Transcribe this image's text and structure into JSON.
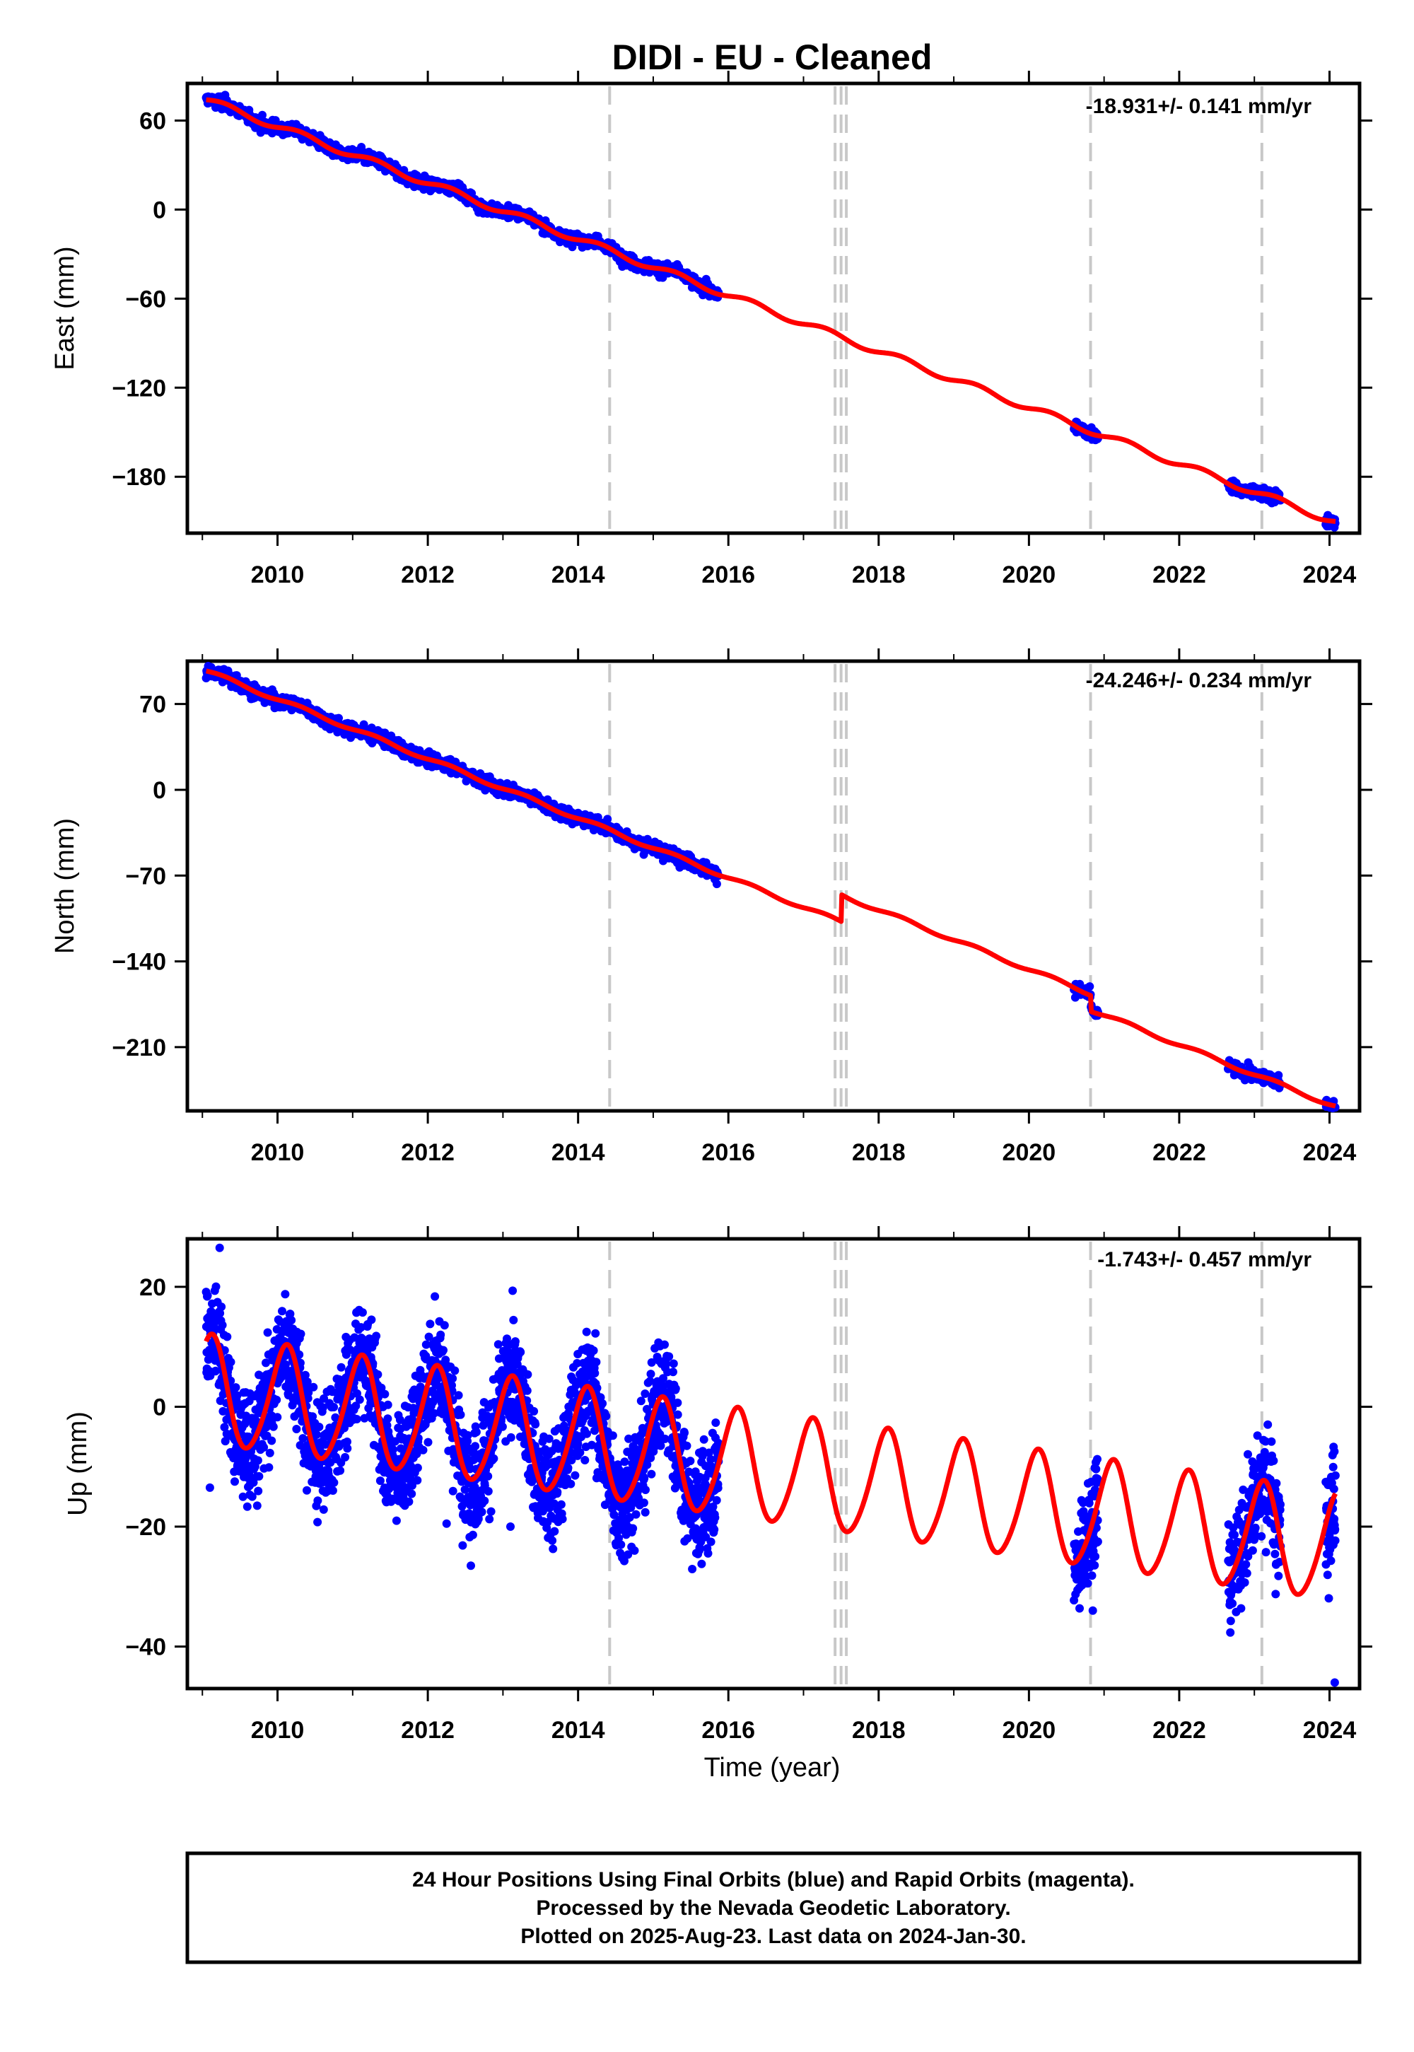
{
  "title": "DIDI  - EU - Cleaned",
  "colors": {
    "data": "#0000ff",
    "model": "#ff0000",
    "break_lines": "#c8c8c8",
    "frame": "#000000"
  },
  "footer": {
    "line1": "24 Hour Positions Using Final Orbits (blue) and Rapid Orbits (magenta).",
    "line2": "Processed by the Nevada Geodetic Laboratory.",
    "line3": "Plotted on 2025-Aug-23. Last data on 2024-Jan-30."
  },
  "chart_data": [
    {
      "type": "scatter",
      "name": "east",
      "ylabel": "East (mm)",
      "rate": "-18.931+/- 0.141 mm/yr",
      "xlim": [
        2008.8,
        2024.4
      ],
      "ylim": [
        -218,
        85
      ],
      "xticks": [
        2010,
        2012,
        2014,
        2016,
        2018,
        2020,
        2022,
        2024
      ],
      "yticks": [
        60,
        0,
        -60,
        -120,
        -180
      ],
      "breaks": [
        2014.42,
        2017.42,
        2017.5,
        2017.57,
        2020.82,
        2023.1
      ],
      "data_segments": [
        [
          2009.05,
          2015.87
        ],
        [
          2020.6,
          2020.92
        ],
        [
          2022.65,
          2023.35
        ],
        [
          2023.95,
          2024.08
        ]
      ],
      "model": {
        "t0": 2009.05,
        "y0": 74,
        "rate": -18.931,
        "annual_amp": 2.2,
        "annual_phase": 0.0,
        "semiannual_amp": 0.0,
        "semiannual_phase": 0.0,
        "offsets": [
          {
            "t": 2017.5,
            "dy": 0
          },
          {
            "t": 2020.82,
            "dy": 0
          }
        ]
      },
      "noise_mm": 2.2,
      "outliers": []
    },
    {
      "type": "scatter",
      "name": "north",
      "ylabel": "North (mm)",
      "rate": "-24.246+/- 0.234 mm/yr",
      "xlim": [
        2008.8,
        2024.4
      ],
      "ylim": [
        -262,
        105
      ],
      "xticks": [
        2010,
        2012,
        2014,
        2016,
        2018,
        2020,
        2022,
        2024
      ],
      "yticks": [
        70,
        0,
        -70,
        -140,
        -210
      ],
      "breaks": [
        2014.42,
        2017.42,
        2017.5,
        2017.57,
        2020.82,
        2023.1
      ],
      "data_segments": [
        [
          2009.05,
          2015.87
        ],
        [
          2020.6,
          2020.92
        ],
        [
          2022.65,
          2023.35
        ],
        [
          2023.95,
          2024.08
        ]
      ],
      "model": {
        "t0": 2009.05,
        "y0": 97,
        "rate": -24.246,
        "annual_amp": 1.5,
        "annual_phase": 0.0,
        "semiannual_amp": 0.0,
        "semiannual_phase": 0.0,
        "offsets": [
          {
            "t": 2017.5,
            "dy": 22
          },
          {
            "t": 2020.82,
            "dy": -13
          }
        ]
      },
      "noise_mm": 2.8,
      "outliers": []
    },
    {
      "type": "scatter",
      "name": "up",
      "ylabel": "Up (mm)",
      "xlabel": "Time (year)",
      "rate": "-1.743+/- 0.457 mm/yr",
      "xlim": [
        2008.8,
        2024.4
      ],
      "ylim": [
        -47,
        28
      ],
      "xticks": [
        2010,
        2012,
        2014,
        2016,
        2018,
        2020,
        2022,
        2024
      ],
      "yticks": [
        20,
        0,
        -20,
        -40
      ],
      "breaks": [
        2014.42,
        2017.42,
        2017.5,
        2017.57,
        2020.82,
        2023.1
      ],
      "data_segments": [
        [
          2009.05,
          2015.87
        ],
        [
          2020.6,
          2020.92
        ],
        [
          2022.65,
          2023.35
        ],
        [
          2023.95,
          2024.08
        ]
      ],
      "model": {
        "t0": 2009.05,
        "y0": 2.5,
        "rate": -1.743,
        "annual_amp": 9.0,
        "annual_phase": 1.2,
        "semiannual_amp": 1.0,
        "semiannual_phase": 0.0,
        "offsets": [
          {
            "t": 2017.5,
            "dy": 0
          }
        ]
      },
      "noise_mm": 4.5,
      "outliers": [
        [
          2009.23,
          26.5
        ],
        [
          2009.1,
          -13.5
        ],
        [
          2012.25,
          -19.5
        ],
        [
          2013.1,
          -20
        ],
        [
          2020.85,
          -34
        ],
        [
          2024.07,
          -46
        ]
      ]
    }
  ]
}
